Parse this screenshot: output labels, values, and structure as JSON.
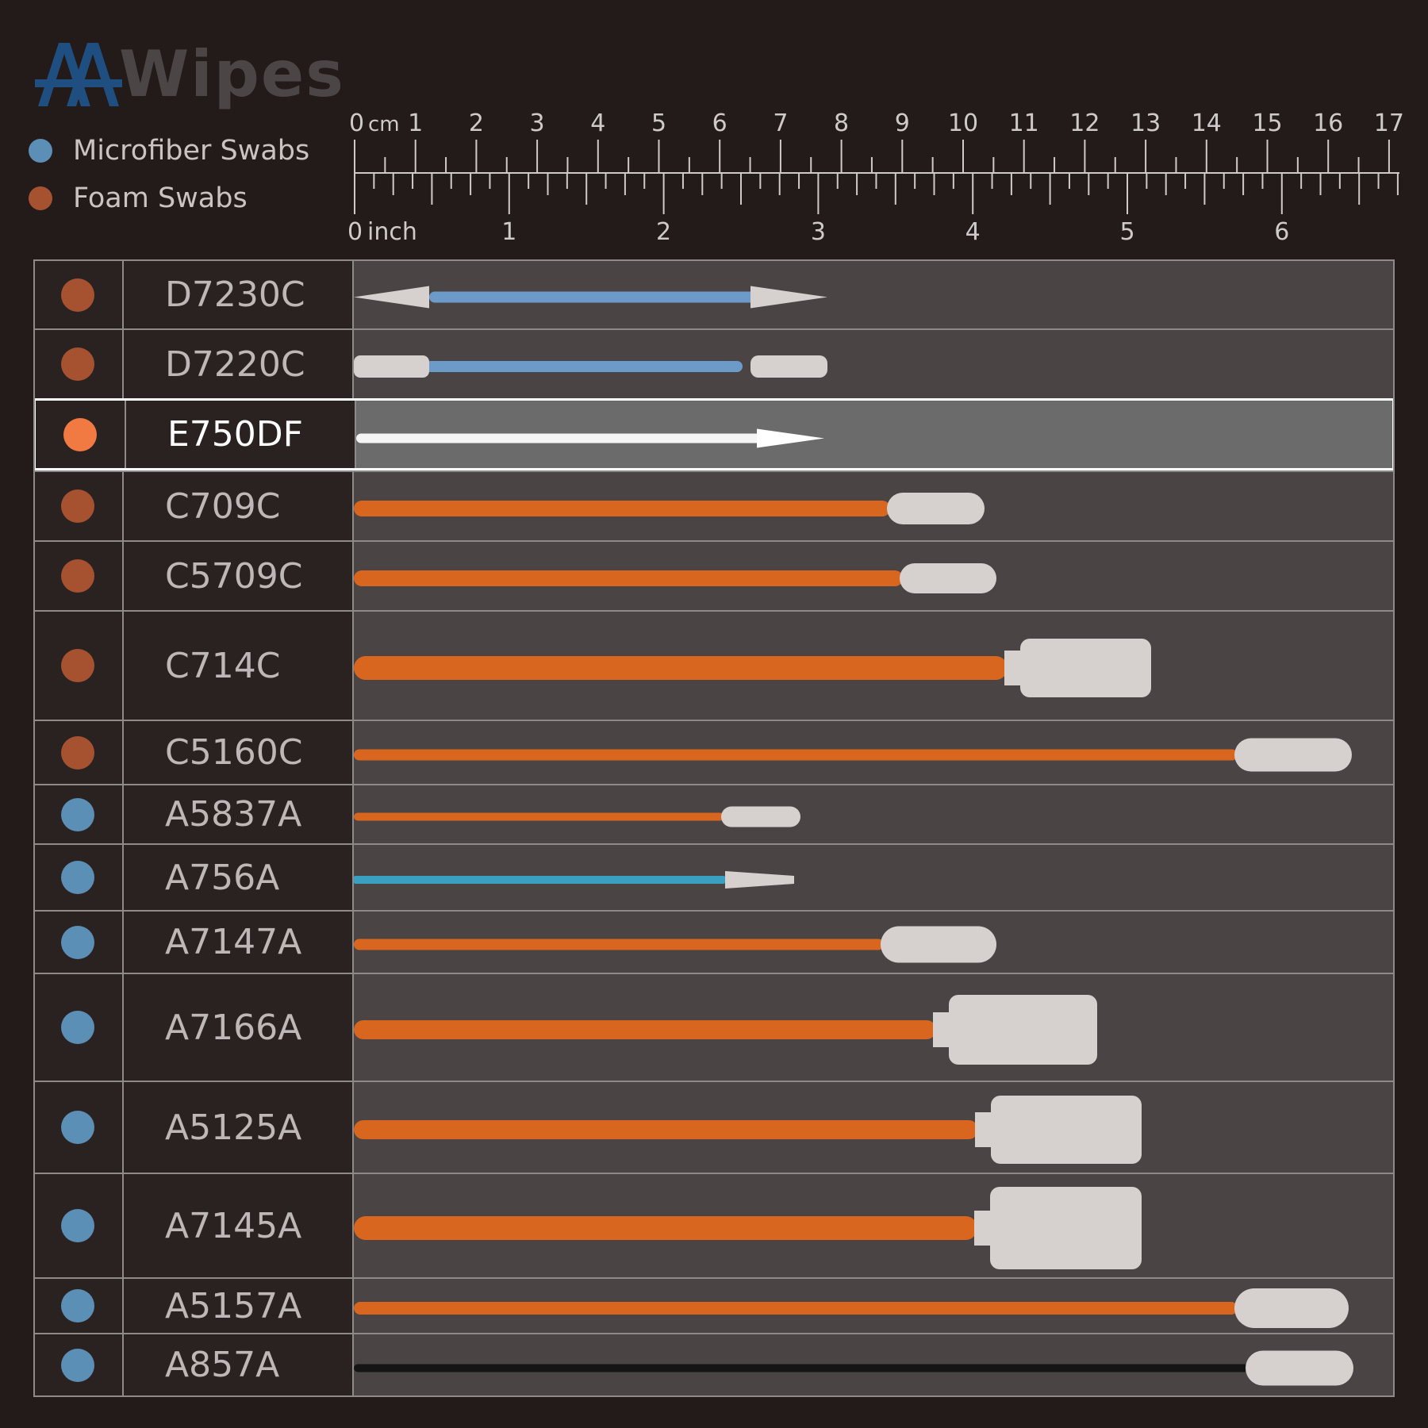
{
  "brand": {
    "logo_text": "Wipes",
    "logo_mark": "AA",
    "mark_color": "#1f4f80",
    "word_color": "#4c4546"
  },
  "legend": [
    {
      "label": "Microfiber Swabs",
      "color": "#5b8fb5"
    },
    {
      "label": "Foam Swabs",
      "color": "#a65230"
    }
  ],
  "ruler": {
    "cm_unit": "cm",
    "inch_unit": "inch",
    "cm_labels": [
      "0",
      "1",
      "2",
      "3",
      "4",
      "5",
      "6",
      "7",
      "8",
      "9",
      "10",
      "11",
      "12",
      "13",
      "14",
      "15",
      "16",
      "17"
    ],
    "inch_labels": [
      "0",
      "1",
      "2",
      "3",
      "4",
      "5",
      "6"
    ]
  },
  "colors": {
    "foam": "#a65230",
    "microfiber": "#5b8fb5",
    "highlight_dot": "#f07a42",
    "handle_orange": "#d8661f",
    "head_white": "#d6d0cf"
  },
  "products": [
    {
      "model": "D7230C",
      "type": "foam",
      "highlight": false,
      "swab": "double-pointed",
      "handle": "blue"
    },
    {
      "model": "D7220C",
      "type": "foam",
      "highlight": false,
      "swab": "double-flat",
      "handle": "blue"
    },
    {
      "model": "E750DF",
      "type": "foam",
      "highlight": true,
      "swab": "pointed",
      "handle": "white"
    },
    {
      "model": "C709C",
      "type": "foam",
      "highlight": false,
      "swab": "round",
      "handle": "orange"
    },
    {
      "model": "C5709C",
      "type": "foam",
      "highlight": false,
      "swab": "round",
      "handle": "orange"
    },
    {
      "model": "C714C",
      "type": "foam",
      "highlight": false,
      "swab": "paddle",
      "handle": "orange"
    },
    {
      "model": "C5160C",
      "type": "foam",
      "highlight": false,
      "swab": "round",
      "handle": "orange"
    },
    {
      "model": "A5837A",
      "type": "microfiber",
      "highlight": false,
      "swab": "small",
      "handle": "orange"
    },
    {
      "model": "A756A",
      "type": "microfiber",
      "highlight": false,
      "swab": "pointed",
      "handle": "teal"
    },
    {
      "model": "A7147A",
      "type": "microfiber",
      "highlight": false,
      "swab": "round",
      "handle": "orange"
    },
    {
      "model": "A7166A",
      "type": "microfiber",
      "highlight": false,
      "swab": "paddle",
      "handle": "orange"
    },
    {
      "model": "A5125A",
      "type": "microfiber",
      "highlight": false,
      "swab": "paddle",
      "handle": "orange"
    },
    {
      "model": "A7145A",
      "type": "microfiber",
      "highlight": false,
      "swab": "paddle",
      "handle": "orange"
    },
    {
      "model": "A5157A",
      "type": "microfiber",
      "highlight": false,
      "swab": "round",
      "handle": "orange"
    },
    {
      "model": "A857A",
      "type": "microfiber",
      "highlight": false,
      "swab": "round",
      "handle": "black"
    }
  ]
}
